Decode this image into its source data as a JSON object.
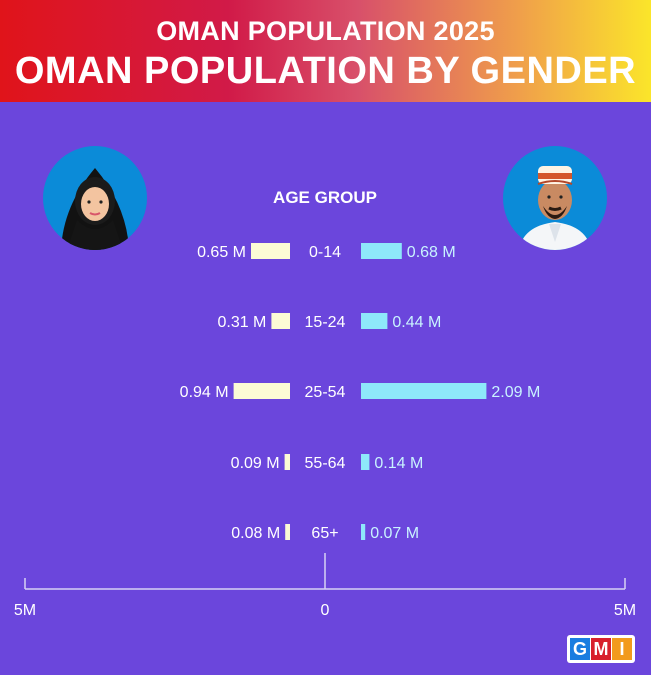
{
  "header": {
    "title": "OMAN POPULATION 2025",
    "subtitle": "OMAN POPULATION BY GENDER"
  },
  "colors": {
    "background": "#6b46dc",
    "female_bar": "#fcfbd5",
    "male_bar": "#8ee8fa",
    "male_label": "#c9f3ff",
    "text": "#ffffff"
  },
  "icons": {
    "female": "woman-in-hijab-avatar-icon",
    "male": "man-in-kuma-cap-avatar-icon"
  },
  "logo": {
    "letters": [
      "G",
      "M",
      "I"
    ],
    "colors": [
      "#1a7de0",
      "#d8202c",
      "#f29a1d"
    ]
  },
  "chart_data": {
    "type": "bar",
    "orientation": "horizontal-diverging",
    "title": "AGE GROUP",
    "categories": [
      "0-14",
      "15-24",
      "25-54",
      "55-64",
      "65+"
    ],
    "series": [
      {
        "name": "",
        "side": "left",
        "values": [
          0.65,
          0.31,
          0.94,
          0.09,
          0.08
        ],
        "labels": [
          "0.65 M",
          "0.31 M",
          "0.94 M",
          "0.09 M",
          "0.08 M"
        ]
      },
      {
        "name": "",
        "side": "right",
        "values": [
          0.68,
          0.44,
          2.09,
          0.14,
          0.07
        ],
        "labels": [
          "0.68 M",
          "0.44 M",
          "2.09 M",
          "0.14 M",
          "0.07 M"
        ]
      }
    ],
    "xlim": [
      -5,
      5
    ],
    "x_ticks": [
      {
        "value": -5,
        "label": "5M"
      },
      {
        "value": 0,
        "label": "0"
      },
      {
        "value": 5,
        "label": "5M"
      }
    ]
  }
}
